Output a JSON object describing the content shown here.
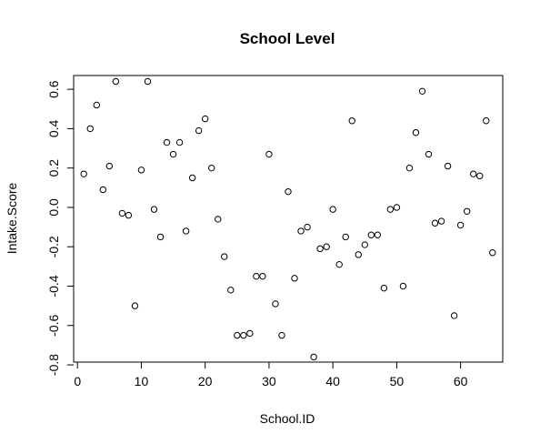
{
  "chart_data": {
    "type": "scatter",
    "title": "School Level",
    "xlabel": "School.ID",
    "ylabel": "Intake.Score",
    "xlim": [
      -0.6,
      66.6
    ],
    "ylim": [
      -0.786,
      0.67
    ],
    "xticks": [
      0,
      10,
      20,
      30,
      40,
      50,
      60
    ],
    "yticks": [
      -0.8,
      -0.6,
      -0.4,
      -0.2,
      0.0,
      0.2,
      0.4,
      0.6
    ],
    "ytick_labels": [
      "-0.8",
      "-0.6",
      "-0.4",
      "-0.2",
      "0.0",
      "0.2",
      "0.4",
      "0.6"
    ],
    "grid": false,
    "marker": "open-circle",
    "x": [
      1,
      2,
      3,
      4,
      5,
      6,
      7,
      8,
      9,
      10,
      11,
      12,
      13,
      14,
      15,
      16,
      17,
      18,
      19,
      20,
      21,
      22,
      23,
      24,
      25,
      26,
      27,
      28,
      29,
      30,
      31,
      32,
      33,
      34,
      35,
      36,
      37,
      38,
      39,
      40,
      41,
      42,
      43,
      44,
      45,
      46,
      47,
      48,
      49,
      50,
      51,
      52,
      53,
      54,
      55,
      56,
      57,
      58,
      59,
      60,
      61,
      62,
      63,
      64,
      65
    ],
    "y": [
      0.17,
      0.4,
      0.52,
      0.09,
      0.21,
      0.64,
      -0.03,
      -0.04,
      -0.5,
      0.19,
      0.64,
      -0.01,
      -0.15,
      0.33,
      0.27,
      0.33,
      -0.12,
      0.15,
      0.39,
      0.45,
      0.2,
      -0.06,
      -0.25,
      -0.42,
      -0.65,
      -0.65,
      -0.64,
      -0.35,
      -0.35,
      0.27,
      -0.49,
      -0.65,
      0.08,
      -0.36,
      -0.12,
      -0.1,
      -0.76,
      -0.21,
      -0.2,
      -0.01,
      -0.29,
      -0.15,
      0.44,
      -0.24,
      -0.19,
      -0.14,
      -0.14,
      -0.41,
      -0.01,
      0.0,
      -0.4,
      0.2,
      0.38,
      0.59,
      0.27,
      -0.08,
      -0.07,
      0.21,
      -0.55,
      -0.09,
      -0.02,
      0.17,
      0.16,
      0.44,
      -0.23
    ]
  }
}
